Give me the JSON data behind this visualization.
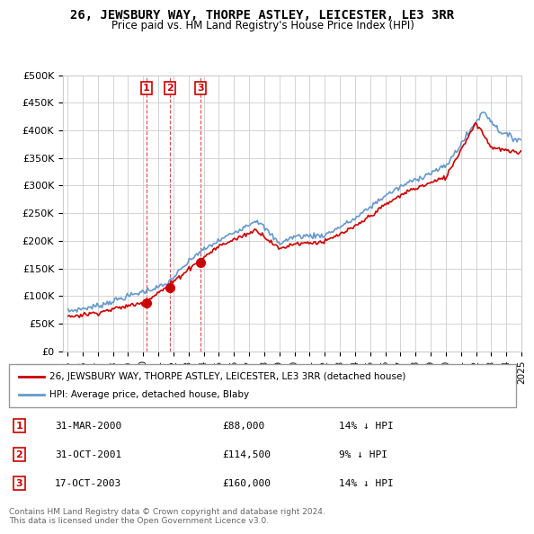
{
  "title": "26, JEWSBURY WAY, THORPE ASTLEY, LEICESTER, LE3 3RR",
  "subtitle": "Price paid vs. HM Land Registry's House Price Index (HPI)",
  "ylabel_ticks": [
    "£0",
    "£50K",
    "£100K",
    "£150K",
    "£200K",
    "£250K",
    "£300K",
    "£350K",
    "£400K",
    "£450K",
    "£500K"
  ],
  "ytick_values": [
    0,
    50000,
    100000,
    150000,
    200000,
    250000,
    300000,
    350000,
    400000,
    450000,
    500000
  ],
  "ylim": [
    0,
    500000
  ],
  "hpi_color": "#6699cc",
  "price_color": "#cc0000",
  "sale_color": "#cc0000",
  "transactions": [
    {
      "num": 1,
      "date": "31-MAR-2000",
      "price": 88000,
      "pct": "14%",
      "dir": "↓"
    },
    {
      "num": 2,
      "date": "31-OCT-2001",
      "price": 114500,
      "pct": "9%",
      "dir": "↓"
    },
    {
      "num": 3,
      "date": "17-OCT-2003",
      "price": 160000,
      "pct": "14%",
      "dir": "↓"
    }
  ],
  "legend_price_label": "26, JEWSBURY WAY, THORPE ASTLEY, LEICESTER, LE3 3RR (detached house)",
  "legend_hpi_label": "HPI: Average price, detached house, Blaby",
  "footnote": "Contains HM Land Registry data © Crown copyright and database right 2024.\nThis data is licensed under the Open Government Licence v3.0.",
  "background_color": "#ffffff",
  "plot_bg_color": "#ffffff",
  "grid_color": "#cccccc",
  "xstart_year": 1995,
  "xend_year": 2025
}
